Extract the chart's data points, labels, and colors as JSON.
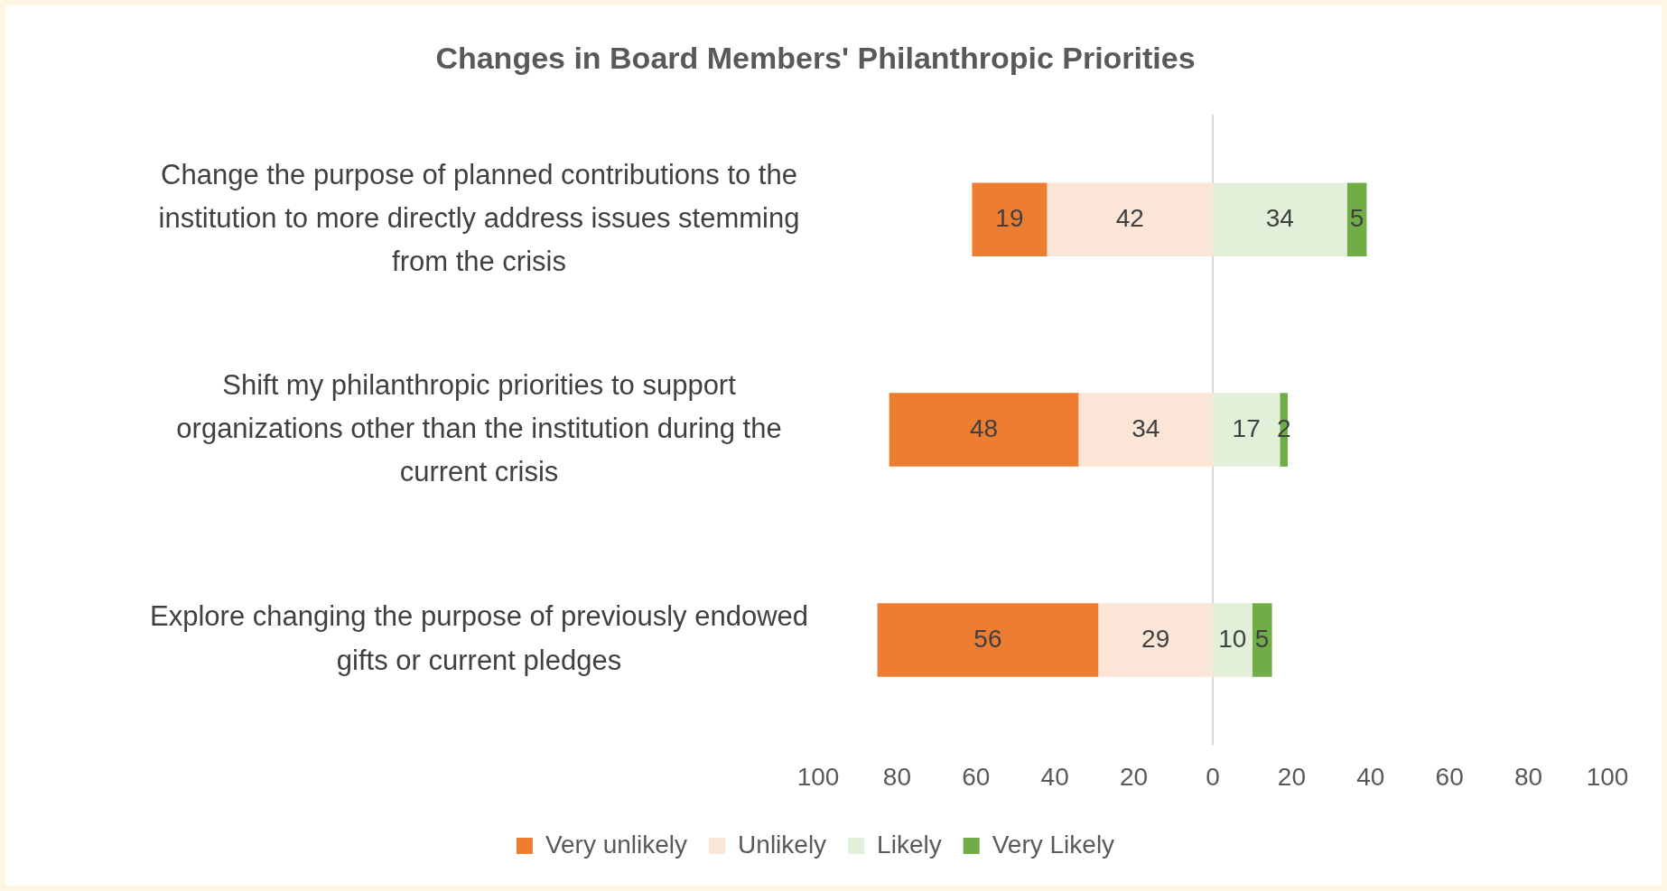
{
  "chart_data": {
    "type": "bar",
    "orientation": "horizontal",
    "title": "Changes in Board Members' Philanthropic Priorities",
    "categories": [
      "Change the purpose of planned contributions to the institution to more directly address issues stemming from the crisis",
      "Shift my philanthropic priorities to support organizations other than the institution during the current crisis",
      "Explore changing the purpose of previously endowed gifts or current pledges"
    ],
    "series": [
      {
        "name": "Very unlikely",
        "color": "#ed7d31",
        "values": [
          19,
          48,
          56
        ],
        "base": [
          -61,
          -82,
          -85
        ]
      },
      {
        "name": "Unlikely",
        "color": "#fbe5d6",
        "values": [
          42,
          34,
          29
        ],
        "base": [
          -42,
          -34,
          -29
        ]
      },
      {
        "name": "Likely",
        "color": "#e2f0d9",
        "values": [
          34,
          17,
          10
        ],
        "base": [
          0,
          0,
          0
        ]
      },
      {
        "name": "Very Likely",
        "color": "#70ad47",
        "values": [
          5,
          2,
          5
        ],
        "base": [
          34,
          17,
          10
        ]
      }
    ],
    "data_labels": true,
    "xlim": [
      -100,
      100
    ],
    "xticks": [
      {
        "value": -100,
        "label": "100"
      },
      {
        "value": -80,
        "label": "80"
      },
      {
        "value": -60,
        "label": "60"
      },
      {
        "value": -40,
        "label": "40"
      },
      {
        "value": -20,
        "label": "20"
      },
      0,
      20,
      40,
      60,
      80,
      100
    ],
    "ref_lines": [
      {
        "axis": "x",
        "value": 0,
        "color": "#d9d9d9"
      }
    ],
    "grid": false,
    "legend": "bottom"
  }
}
